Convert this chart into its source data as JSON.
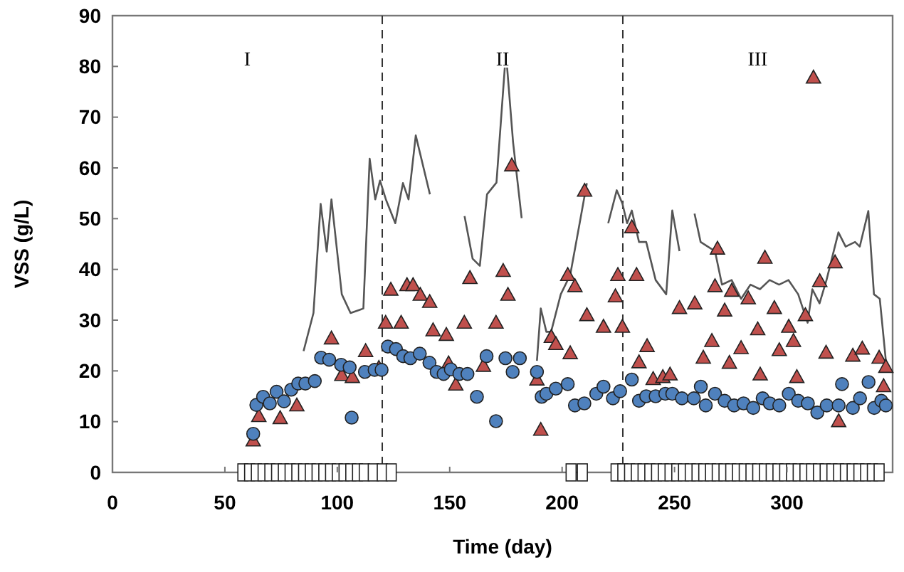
{
  "chart_data": {
    "type": "scatter",
    "xlabel": "Time (day)",
    "ylabel": "VSS (g/L)",
    "xlim": [
      0,
      347
    ],
    "ylim": [
      0,
      90
    ],
    "xticks": [
      0,
      50,
      100,
      150,
      200,
      250,
      300
    ],
    "yticks": [
      0,
      10,
      20,
      30,
      40,
      50,
      60,
      70,
      80,
      90
    ],
    "grid": false,
    "annotations": [
      "I",
      "II",
      "III"
    ],
    "ref_lines": [
      {
        "axis": "x",
        "value": 120,
        "line_style": "dashed",
        "color": "#333333"
      },
      {
        "axis": "x",
        "value": 227,
        "line_style": "dashed",
        "color": "#333333"
      }
    ],
    "series": [
      {
        "type": "line",
        "color": "#555555",
        "marker": "none",
        "line_style": "solid",
        "x": [
          85,
          89.4,
          92.6,
          95.3,
          97.4,
          102,
          105.9,
          111.6,
          114.4,
          116.9,
          119,
          121.6,
          125.8,
          129.2,
          131.7,
          134.9,
          141.2,
          148,
          156.6,
          160.2,
          163.4,
          166.6,
          170.8,
          175,
          178.2,
          182,
          185,
          188.8,
          190.5,
          193,
          195.1,
          199.4,
          203.6,
          207.8,
          211,
          215,
          220.5,
          224.3,
          226.8,
          228.9,
          231,
          234.2,
          237.4,
          241.6,
          246.3,
          249,
          252.2,
          255,
          258.9,
          261.6,
          264.8,
          268,
          271.1,
          275.4,
          279.6,
          283.8,
          288,
          292.3,
          296.5,
          300.7,
          305,
          309.2,
          311.3,
          314.5,
          317.6,
          322.9,
          326.1,
          330.3,
          332.4,
          336.2,
          338.7,
          341.3,
          344
        ],
        "values": [
          23.9,
          31.4,
          52.9,
          43.5,
          53.8,
          35.1,
          31.4,
          32.3,
          61.8,
          53.8,
          57.5,
          53.8,
          49.1,
          57,
          53.8,
          66.4,
          54.8,
          null,
          50.5,
          42.1,
          40.7,
          54.8,
          57.1,
          82.8,
          65,
          50.1,
          null,
          22,
          32.3,
          27.7,
          27.7,
          35.1,
          38.9,
          49.1,
          57,
          null,
          49.1,
          55.6,
          53,
          49.1,
          51.6,
          45.4,
          45.4,
          37.9,
          35.1,
          51.6,
          43.6,
          null,
          51,
          45.4,
          44.5,
          43.6,
          37,
          37.9,
          34.2,
          37,
          36.1,
          37.9,
          37,
          37.9,
          35.1,
          29.5,
          36.1,
          33.3,
          37.9,
          47.3,
          44.5,
          45.4,
          44.5,
          51.5,
          35.1,
          34.2,
          22
        ]
      },
      {
        "color": "#c0504d",
        "marker": "triangle",
        "x": [
          62.6,
          65.1,
          74.6,
          82,
          97.4,
          102,
          106.7,
          112.6,
          118.5,
          121.5,
          123.8,
          128.4,
          131,
          133.7,
          136.9,
          141.1,
          142.6,
          148.5,
          149.5,
          152.7,
          156.5,
          159,
          165,
          170.6,
          173.8,
          175.9,
          177.6,
          188.8,
          190.5,
          195.2,
          197.2,
          202.5,
          203.6,
          205.7,
          210,
          211,
          218.4,
          223.7,
          224.8,
          226.8,
          231,
          233.1,
          234.2,
          237.8,
          240.5,
          244.8,
          248,
          252.2,
          259,
          262.8,
          266.6,
          268,
          269.1,
          272.3,
          274.4,
          275.4,
          279.6,
          282.8,
          287,
          288.1,
          290.2,
          294.4,
          296.6,
          300.8,
          302.9,
          304.4,
          308.2,
          311.8,
          314.6,
          317.4,
          321.4,
          323,
          329.3,
          333.5,
          341,
          343,
          344
        ],
        "values": [
          6.2,
          11,
          10.6,
          13.1,
          26.3,
          19.1,
          18.7,
          23.8,
          20.5,
          29.4,
          35.9,
          29.4,
          36.8,
          36.8,
          34.9,
          33.5,
          27.9,
          27,
          21.4,
          17.2,
          29.4,
          38.2,
          20.9,
          29.4,
          39.6,
          34.9,
          60.4,
          18.2,
          8.3,
          26.6,
          25.2,
          38.8,
          23.4,
          36.6,
          55.4,
          30.9,
          28.6,
          34.6,
          38.8,
          28.6,
          48.2,
          38.8,
          21.6,
          24.8,
          18.3,
          18.7,
          19.2,
          32.3,
          33.2,
          22.5,
          25.8,
          36.6,
          44,
          31.8,
          21.5,
          35.7,
          24.4,
          34.2,
          28.1,
          19.2,
          42.2,
          32.3,
          24,
          28.6,
          25.8,
          18.7,
          30.9,
          77.7,
          37.6,
          23.5,
          41.3,
          10,
          22.9,
          24.3,
          22.5,
          16.9,
          20.7
        ]
      },
      {
        "color": "#4f81bd",
        "marker": "circle",
        "x": [
          62.6,
          64,
          67,
          70,
          73,
          76.3,
          79.5,
          82.6,
          85.8,
          90,
          92.8,
          96.4,
          101.7,
          105.5,
          106.4,
          112.3,
          116.6,
          119.7,
          122.5,
          126.1,
          129.3,
          132.5,
          136.7,
          141,
          144.2,
          147.3,
          150.5,
          154.3,
          157.9,
          162.1,
          166.4,
          170.6,
          174.8,
          178,
          181.2,
          188.8,
          190.9,
          193,
          197.2,
          202.5,
          205.7,
          209.9,
          215.2,
          218.4,
          222.6,
          225.8,
          231,
          234.2,
          237.4,
          241.6,
          245.9,
          249,
          253.3,
          258.6,
          261.7,
          263.9,
          268,
          272.3,
          276.5,
          280.7,
          285,
          289.2,
          292.4,
          296.6,
          300.8,
          305,
          309.3,
          313.5,
          317.7,
          323,
          324.5,
          329.3,
          332.5,
          336.3,
          338.8,
          342,
          344
        ],
        "values": [
          7.6,
          13.3,
          14.9,
          13.6,
          15.9,
          14,
          16.3,
          17.5,
          17.5,
          18,
          22.6,
          22.2,
          21.2,
          20.7,
          10.8,
          19.8,
          20.2,
          20.2,
          24.8,
          24.3,
          22.9,
          22.5,
          23.4,
          21.6,
          19.8,
          19.4,
          20.3,
          19.4,
          19.4,
          14.9,
          22.9,
          10.1,
          22.5,
          19.8,
          22.5,
          19.8,
          14.9,
          15.5,
          16.5,
          17.4,
          13.2,
          13.6,
          15.5,
          16.9,
          14.6,
          16,
          18.3,
          14.1,
          15,
          15,
          15.5,
          15.5,
          14.6,
          14.6,
          16.9,
          13.2,
          15.5,
          14.1,
          13.2,
          13.6,
          12.7,
          14.6,
          13.6,
          13.2,
          15.5,
          14.1,
          13.6,
          11.8,
          13.2,
          13.2,
          17.4,
          12.7,
          14.6,
          17.8,
          12.7,
          14.1,
          13.2
        ]
      },
      {
        "color": "#ffffff",
        "marker": "square",
        "x": [
          58,
          61,
          64,
          67,
          70,
          73,
          76,
          79,
          82,
          85,
          88,
          91,
          94,
          97,
          100,
          103,
          106,
          109,
          112,
          116,
          120,
          124,
          204,
          209,
          224,
          227,
          230,
          233,
          236,
          239,
          242,
          245,
          248,
          251,
          254,
          257,
          260,
          263,
          266,
          269,
          272,
          275,
          278,
          281,
          284,
          287,
          290,
          293,
          296,
          299,
          302,
          305,
          308,
          311,
          314,
          317,
          320,
          323,
          326,
          329,
          332,
          335,
          338,
          341
        ],
        "values": [
          0,
          0,
          0,
          0,
          0,
          0,
          0,
          0,
          0,
          0,
          0,
          0,
          0,
          0,
          0,
          0,
          0,
          0,
          0,
          0,
          0,
          0,
          0,
          0,
          0,
          0,
          0,
          0,
          0,
          0,
          0,
          0,
          0,
          0,
          0,
          0,
          0,
          0,
          0,
          0,
          0,
          0,
          0,
          0,
          0,
          0,
          0,
          0,
          0,
          0,
          0,
          0,
          0,
          0,
          0,
          0,
          0,
          0,
          0,
          0,
          0,
          0,
          0,
          0
        ]
      }
    ]
  }
}
